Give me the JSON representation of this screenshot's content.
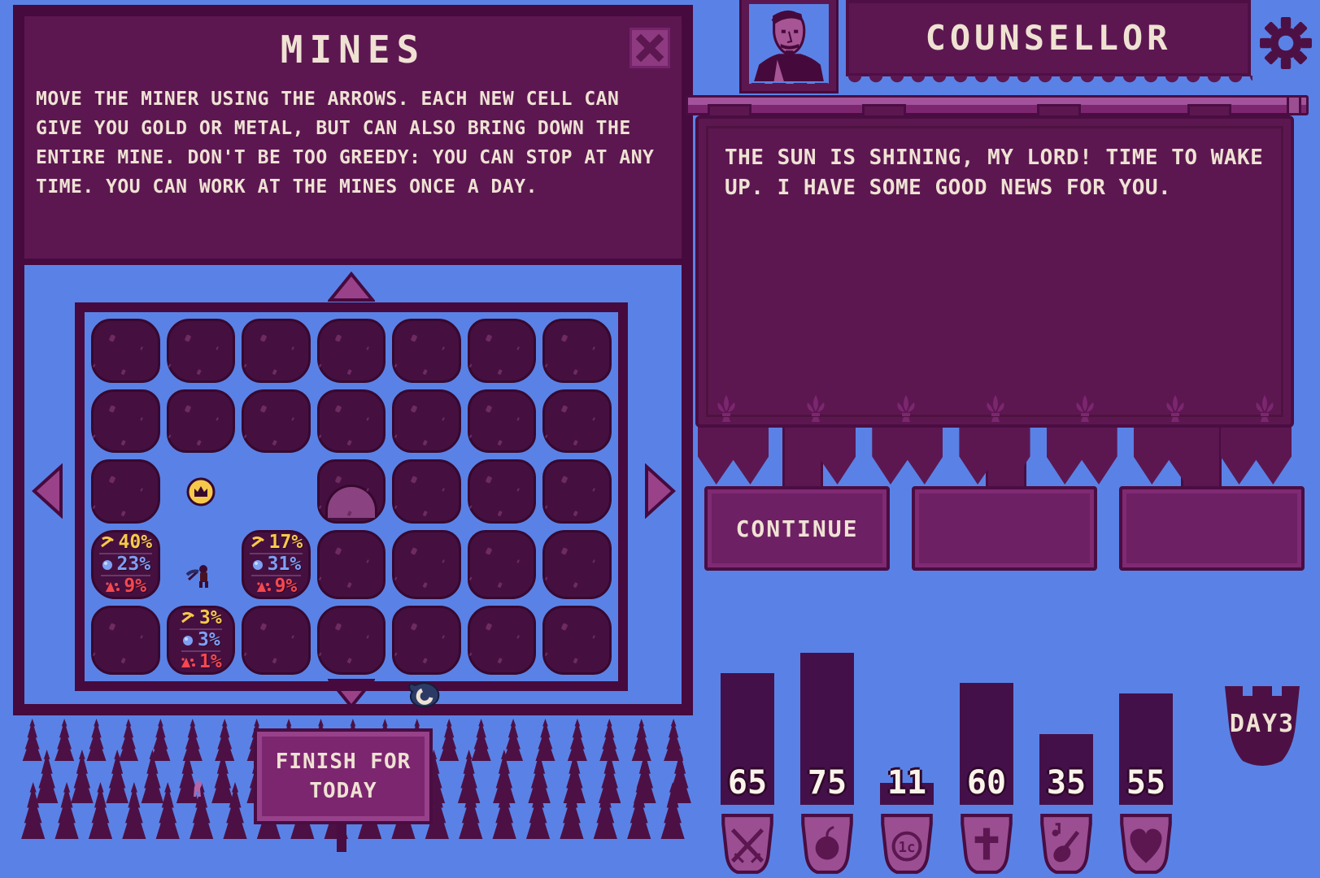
{
  "colors": {
    "background_blue": "#5A82E6",
    "panel_purple": "#5C1751",
    "panel_border": "#460A3E",
    "rock_purple": "#451040",
    "accent_purple": "#8E3A80",
    "button_purple": "#7C2670",
    "badge_purple": "#9B4F92",
    "bar_purple": "#44104A",
    "text_cream": "#EFE2D3",
    "gold_yellow": "#F6C94B",
    "metal_blue": "#7DA0F5",
    "danger_red": "#F5484F"
  },
  "mines": {
    "title": "MINES",
    "instructions": "MOVE THE MINER USING THE ARROWS. EACH NEW CELL CAN GIVE YOU GOLD OR METAL, BUT CAN ALSO BRING DOWN THE ENTIRE MINE. DON'T BE TOO GREEDY: YOU CAN STOP AT ANY TIME. YOU CAN WORK AT THE MINES ONCE A DAY.",
    "finish_button": "FINISH FOR TODAY",
    "grid": [
      [
        "rock",
        "rock",
        "rock",
        "rock",
        "rock",
        "rock",
        "rock"
      ],
      [
        "rock",
        "rock",
        "rock",
        "rock",
        "rock",
        "rock",
        "rock"
      ],
      [
        "rock",
        "coin",
        "empty",
        "cave",
        "rock",
        "rock",
        "rock"
      ],
      [
        "prob:0",
        "miner",
        "prob:1",
        "rock",
        "rock",
        "rock",
        "rock"
      ],
      [
        "rock",
        "prob:2",
        "rock",
        "rock",
        "rock",
        "rock",
        "rock"
      ]
    ],
    "probabilities": [
      {
        "gold": "40%",
        "metal": "23%",
        "collapse": "9%"
      },
      {
        "gold": "17%",
        "metal": "31%",
        "collapse": "9%"
      },
      {
        "gold": "3%",
        "metal": "3%",
        "collapse": "1%"
      }
    ]
  },
  "counsellor": {
    "title": "COUNSELLOR",
    "dialogue": "THE SUN IS SHINING, MY LORD! TIME TO WAKE UP. I HAVE SOME GOOD NEWS FOR YOU.",
    "responses": [
      "CONTINUE",
      "",
      ""
    ]
  },
  "hud": {
    "day_label": "DAY3",
    "stats": [
      {
        "name": "military",
        "icon": "crossed-swords",
        "value": 65
      },
      {
        "name": "food",
        "icon": "apple",
        "value": 75
      },
      {
        "name": "money",
        "icon": "coin",
        "value": 11,
        "coin_text": "1c"
      },
      {
        "name": "religion",
        "icon": "cross",
        "value": 60
      },
      {
        "name": "culture",
        "icon": "lute",
        "value": 35
      },
      {
        "name": "health",
        "icon": "heart",
        "value": 55
      }
    ]
  }
}
